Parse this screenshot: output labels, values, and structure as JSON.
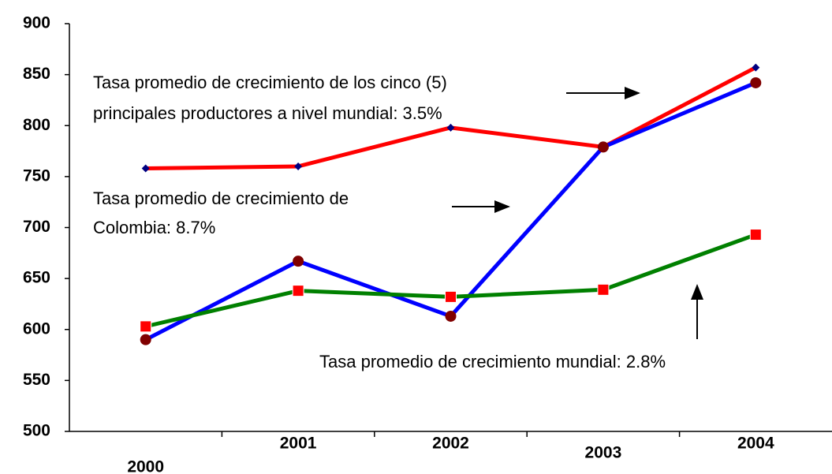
{
  "chart_data": {
    "type": "line",
    "categories": [
      "2000",
      "2001",
      "2002",
      "2003",
      "2004"
    ],
    "series": [
      {
        "color": "#ff0000",
        "marker": "diamond",
        "marker_color": "#000080",
        "values": [
          758,
          760,
          798,
          779,
          857
        ]
      },
      {
        "color": "#0000ff",
        "marker": "circle",
        "marker_color": "#800000",
        "values": [
          590,
          667,
          613,
          779,
          842
        ]
      },
      {
        "color": "#008000",
        "marker": "square",
        "marker_color": "#ff0000",
        "values": [
          603,
          638,
          632,
          639,
          693
        ]
      }
    ],
    "ylim": [
      500,
      900
    ],
    "yticks": [
      500,
      550,
      600,
      650,
      700,
      750,
      800,
      850,
      900
    ],
    "grid": false,
    "annotations": [
      {
        "lines": [
          "Tasa promedio de crecimiento de los cinco (5)",
          "principales productores a nivel mundial: 3.5%"
        ]
      },
      {
        "lines": [
          "Tasa promedio de crecimiento de",
          "Colombia: 8.7%"
        ]
      },
      {
        "lines": [
          "Tasa promedio de crecimiento mundial: 2.8%"
        ]
      }
    ]
  }
}
